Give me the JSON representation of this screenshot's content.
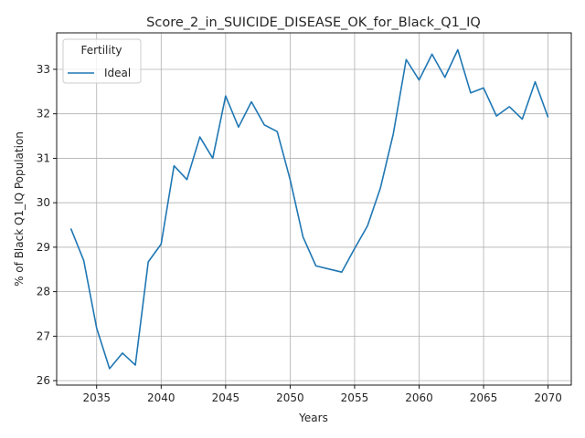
{
  "chart_data": {
    "type": "line",
    "title": "Score_2_in_SUICIDE_DISEASE_OK_for_Black_Q1_IQ",
    "xlabel": "Years",
    "ylabel": "% of Black Q1_IQ Population",
    "xlim": [
      2031.9,
      2071.8
    ],
    "ylim": [
      25.9,
      33.82
    ],
    "xticks": [
      2035,
      2040,
      2045,
      2050,
      2055,
      2060,
      2065,
      2070
    ],
    "yticks": [
      26,
      27,
      28,
      29,
      30,
      31,
      32,
      33
    ],
    "grid": true,
    "legend": {
      "title": "Fertility",
      "position": "top-left"
    },
    "series": [
      {
        "name": "Ideal",
        "color": "#1f77b4",
        "x": [
          2033,
          2034,
          2035,
          2036,
          2037,
          2038,
          2039,
          2040,
          2041,
          2042,
          2043,
          2044,
          2045,
          2046,
          2047,
          2048,
          2049,
          2050,
          2051,
          2052,
          2053,
          2054,
          2055,
          2056,
          2057,
          2058,
          2059,
          2060,
          2061,
          2062,
          2063,
          2064,
          2065,
          2066,
          2067,
          2068,
          2069,
          2070
        ],
        "y": [
          29.42,
          28.7,
          27.18,
          26.27,
          26.62,
          26.35,
          28.67,
          29.07,
          30.83,
          30.52,
          31.48,
          31.0,
          32.4,
          31.7,
          32.27,
          31.75,
          31.6,
          30.52,
          29.23,
          28.58,
          28.51,
          28.44,
          28.97,
          29.48,
          30.33,
          31.55,
          33.22,
          32.76,
          33.34,
          32.82,
          33.44,
          32.47,
          32.58,
          31.95,
          32.16,
          31.88,
          32.72,
          31.92
        ]
      }
    ]
  }
}
